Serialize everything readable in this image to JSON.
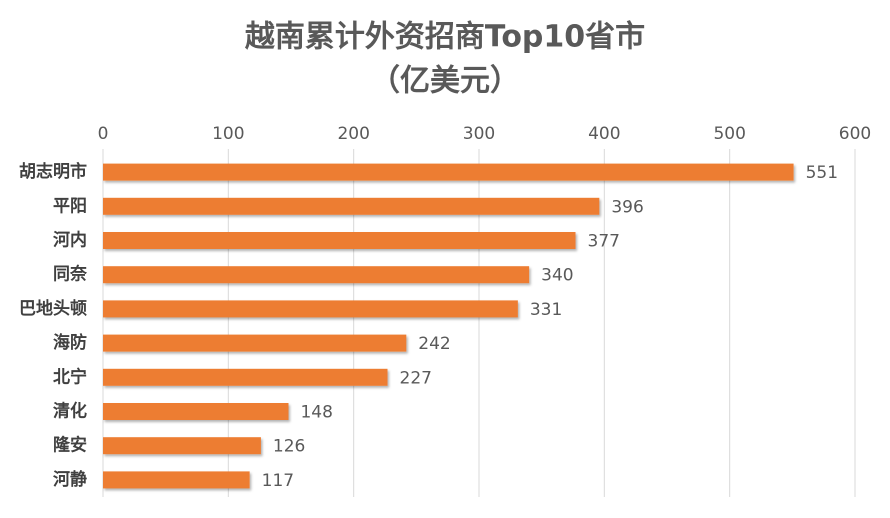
{
  "chart_data": {
    "type": "bar",
    "orientation": "horizontal",
    "title": "越南累计外资招商Top10省市",
    "subtitle": "（亿美元）",
    "categories": [
      "胡志明市",
      "平阳",
      "河内",
      "同奈",
      "巴地头顿",
      "海防",
      "北宁",
      "清化",
      "隆安",
      "河静"
    ],
    "values": [
      551,
      396,
      377,
      340,
      331,
      242,
      227,
      148,
      126,
      117
    ],
    "color": "#ed7d31",
    "xlim": [
      0,
      600
    ],
    "xticks": [
      0,
      100,
      200,
      300,
      400,
      500,
      600
    ],
    "grid": true
  }
}
